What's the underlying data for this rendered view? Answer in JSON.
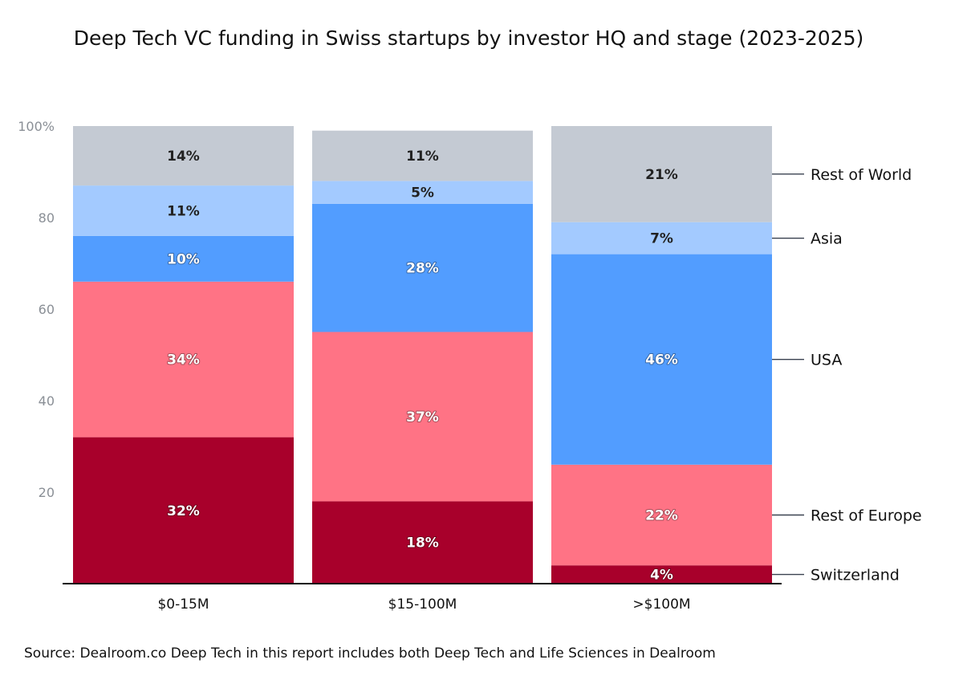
{
  "chart_data": {
    "type": "bar",
    "stacked": true,
    "title": "Deep Tech VC funding in Swiss startups by investor HQ and stage (2023-2025)",
    "xlabel": "",
    "ylabel": "",
    "ylim": [
      0,
      100
    ],
    "yticks": [
      "100%",
      "80",
      "60",
      "40",
      "20"
    ],
    "ytick_values": [
      100,
      80,
      60,
      40,
      20
    ],
    "categories": [
      "$0-15M",
      "$15-100M",
      ">$100M"
    ],
    "series": [
      {
        "name": "Switzerland",
        "color": "#a8002b",
        "label_color": "#ffffff",
        "values": [
          32,
          18,
          4
        ],
        "labels": [
          "32%",
          "18%",
          "4%"
        ]
      },
      {
        "name": "Rest of Europe",
        "color": "#ff7385",
        "label_color": "#ffffff",
        "values": [
          34,
          37,
          22
        ],
        "labels": [
          "34%",
          "37%",
          "22%"
        ]
      },
      {
        "name": "USA",
        "color": "#529dff",
        "label_color": "#ffffff",
        "values": [
          10,
          28,
          46
        ],
        "labels": [
          "10%",
          "28%",
          "46%"
        ]
      },
      {
        "name": "Asia",
        "color": "#a3caff",
        "label_color": "#222222",
        "values": [
          11,
          5,
          7
        ],
        "labels": [
          "11%",
          "5%",
          "7%"
        ]
      },
      {
        "name": "Rest of World",
        "color": "#c4cad3",
        "label_color": "#222222",
        "values": [
          14,
          11,
          21
        ],
        "labels": [
          "14%",
          "11%",
          "21%"
        ]
      }
    ],
    "legend": "right, aligned to last bar",
    "grid": false
  },
  "source": "Source:   Dealroom.co  Deep Tech in this report includes both Deep Tech and Life Sciences in Dealroom"
}
